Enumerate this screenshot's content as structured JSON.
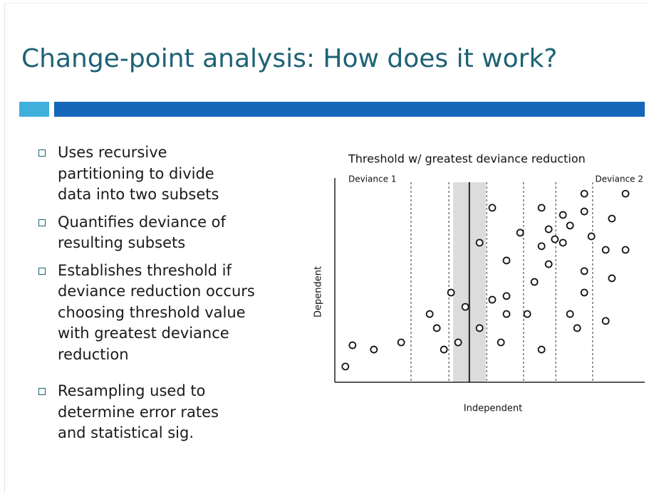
{
  "title": "Change-point analysis:  How does it work?",
  "bullets": [
    [
      "Uses recursive",
      "partitioning to divide",
      "data into two subsets"
    ],
    [
      "Quantifies deviance of",
      "resulting subsets"
    ],
    [
      "Establishes threshold if",
      "deviance reduction occurs",
      "choosing threshold value",
      "with greatest deviance",
      "reduction"
    ],
    [
      "Resampling used to",
      "determine error rates",
      "and statistical sig."
    ]
  ],
  "chart_data": {
    "type": "scatter",
    "title": "Threshold w/ greatest deviance reduction",
    "xlabel": "Independent",
    "ylabel": "Dependent",
    "region_labels": [
      "Deviance 1",
      "Deviance 2"
    ],
    "xlim": [
      0,
      100
    ],
    "ylim": [
      0,
      100
    ],
    "thresholds": [
      24.6,
      36.8,
      49.0,
      60.9,
      71.3,
      83.2
    ],
    "selected_threshold": 43.4,
    "selected_band": [
      38.2,
      48.7
    ],
    "x": [
      3.4,
      5.7,
      12.6,
      21.4,
      30.6,
      32.9,
      35.2,
      37.5,
      39.8,
      42.1,
      46.7,
      46.7,
      50.8,
      50.8,
      53.6,
      55.4,
      55.4,
      55.4,
      59.8,
      62.1,
      64.4,
      66.7,
      66.7,
      66.7,
      69.0,
      69.0,
      71.0,
      73.6,
      73.6,
      75.9,
      75.9,
      78.2,
      80.5,
      80.5,
      80.5,
      80.5,
      82.8,
      87.4,
      87.4,
      89.4,
      89.4,
      93.8,
      93.8
    ],
    "values": [
      7.7,
      18.1,
      16.0,
      19.5,
      33.4,
      26.5,
      16.0,
      43.9,
      19.5,
      36.9,
      26.5,
      68.3,
      85.4,
      40.4,
      19.5,
      59.6,
      42.2,
      33.4,
      73.2,
      33.4,
      49.1,
      85.4,
      66.6,
      16.0,
      74.9,
      57.8,
      70.0,
      81.9,
      68.3,
      76.7,
      33.4,
      26.5,
      92.3,
      83.6,
      54.4,
      43.9,
      71.4,
      64.8,
      30.0,
      80.1,
      50.9,
      92.3,
      64.8
    ]
  }
}
